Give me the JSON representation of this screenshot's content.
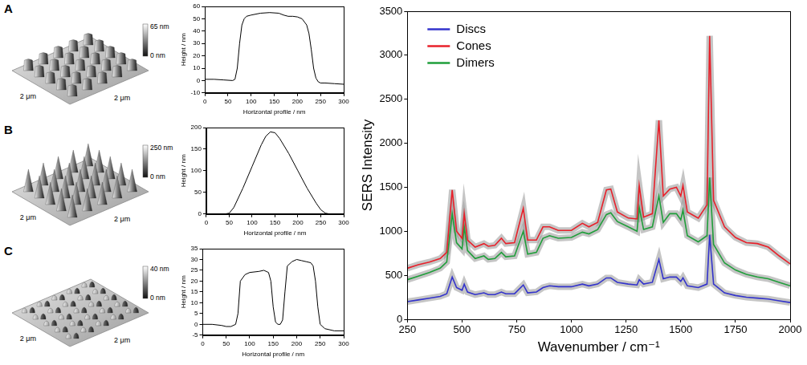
{
  "chart_data": [
    {
      "type": "line",
      "x_label": "Horizontal profile / nm",
      "y_label": "Height / nm",
      "x": [
        0,
        20,
        40,
        60,
        65,
        70,
        75,
        80,
        85,
        90,
        100,
        120,
        140,
        160,
        170,
        180,
        190,
        200,
        210,
        220,
        225,
        230,
        235,
        240,
        245,
        250,
        260,
        280,
        300
      ],
      "values": [
        1,
        1,
        0.5,
        0,
        1,
        10,
        30,
        45,
        50,
        52,
        53,
        54.5,
        55,
        54.5,
        53,
        52,
        52,
        51.5,
        50,
        45,
        38,
        25,
        10,
        2,
        -1,
        -2,
        -2,
        -2.5,
        -3
      ],
      "color": "#000000",
      "xlim": [
        0,
        300
      ],
      "xticks": [
        0,
        50,
        100,
        150,
        200,
        250,
        300
      ],
      "ylim": [
        -10,
        60
      ],
      "yticks": [
        -10,
        0,
        10,
        20,
        30,
        40,
        50,
        60
      ],
      "grid": false
    },
    {
      "type": "line",
      "x_label": "Horizontal profile / nm",
      "y_label": "Height / nm",
      "x": [
        0,
        20,
        40,
        50,
        60,
        80,
        100,
        120,
        130,
        140,
        150,
        160,
        180,
        200,
        220,
        240,
        250,
        260,
        270,
        280,
        300
      ],
      "values": [
        0,
        0,
        0,
        2,
        15,
        60,
        110,
        160,
        180,
        190,
        188,
        175,
        140,
        100,
        60,
        25,
        10,
        2,
        0,
        0,
        0
      ],
      "color": "#000000",
      "xlim": [
        0,
        300
      ],
      "xticks": [
        0,
        50,
        100,
        150,
        200,
        250,
        300
      ],
      "ylim": [
        0,
        200
      ],
      "yticks": [
        0,
        50,
        100,
        150,
        200
      ],
      "grid": false
    },
    {
      "type": "line",
      "x_label": "Horizontal profile / nm",
      "y_label": "Height / nm",
      "x": [
        0,
        20,
        40,
        50,
        60,
        70,
        75,
        80,
        90,
        100,
        120,
        130,
        140,
        145,
        150,
        155,
        160,
        165,
        170,
        175,
        180,
        190,
        200,
        210,
        220,
        230,
        235,
        240,
        245,
        250,
        260,
        280,
        300
      ],
      "values": [
        0,
        0,
        -0.5,
        -1,
        -1,
        0,
        5,
        20,
        23,
        24,
        24.5,
        25,
        24,
        20,
        8,
        1,
        0,
        0,
        2,
        15,
        27,
        29,
        30,
        29.5,
        29,
        28.5,
        27,
        20,
        8,
        0,
        -2,
        -3,
        -3
      ],
      "color": "#000000",
      "xlim": [
        0,
        300
      ],
      "xticks": [
        0,
        50,
        100,
        150,
        200,
        250,
        300
      ],
      "ylim": [
        -5,
        35
      ],
      "yticks": [
        -5,
        0,
        5,
        10,
        15,
        20,
        25,
        30,
        35
      ],
      "grid": false
    },
    {
      "type": "line",
      "x_label": "Wavenumber / cm⁻¹",
      "y_label": "SERS Intensity",
      "x": [
        250,
        300,
        350,
        400,
        430,
        455,
        475,
        500,
        510,
        525,
        560,
        600,
        620,
        650,
        680,
        700,
        740,
        780,
        800,
        840,
        870,
        900,
        940,
        1000,
        1050,
        1080,
        1120,
        1160,
        1180,
        1210,
        1260,
        1300,
        1310,
        1330,
        1370,
        1400,
        1420,
        1450,
        1480,
        1500,
        1510,
        1530,
        1580,
        1620,
        1632,
        1650,
        1700,
        1750,
        1800,
        1850,
        1900,
        1950,
        2000
      ],
      "series": [
        {
          "name": "Discs",
          "color": "#3333cc",
          "values": [
            200,
            220,
            240,
            260,
            290,
            480,
            360,
            330,
            400,
            310,
            280,
            300,
            280,
            280,
            310,
            290,
            290,
            390,
            300,
            310,
            360,
            380,
            370,
            370,
            400,
            380,
            400,
            470,
            470,
            420,
            400,
            390,
            450,
            400,
            420,
            680,
            460,
            480,
            480,
            430,
            470,
            380,
            360,
            400,
            960,
            400,
            300,
            270,
            250,
            240,
            230,
            210,
            190
          ]
        },
        {
          "name": "Cones",
          "color": "#e8202a",
          "values": [
            580,
            620,
            650,
            690,
            760,
            1470,
            1000,
            920,
            1200,
            900,
            820,
            860,
            830,
            840,
            920,
            860,
            870,
            1260,
            900,
            900,
            1050,
            1050,
            1010,
            1010,
            1090,
            1050,
            1100,
            1470,
            1480,
            1220,
            1150,
            1140,
            1520,
            1160,
            1200,
            2260,
            1400,
            1480,
            1500,
            1400,
            1520,
            1220,
            1150,
            1300,
            3220,
            1350,
            1050,
            930,
            870,
            860,
            820,
            720,
            630
          ]
        },
        {
          "name": "Dimers",
          "color": "#1f9e3a",
          "values": [
            450,
            490,
            530,
            580,
            650,
            1200,
            870,
            800,
            1050,
            780,
            690,
            720,
            680,
            690,
            760,
            710,
            720,
            1000,
            740,
            760,
            920,
            950,
            920,
            930,
            990,
            970,
            1020,
            1190,
            1210,
            1110,
            1050,
            1000,
            1270,
            1020,
            1050,
            1400,
            1100,
            1200,
            1200,
            1130,
            1240,
            950,
            880,
            950,
            1610,
            850,
            640,
            560,
            510,
            480,
            460,
            420,
            380
          ]
        }
      ],
      "xlim": [
        250,
        2000
      ],
      "xticks": [
        250,
        500,
        750,
        1000,
        1250,
        1500,
        1750,
        2000
      ],
      "ylim": [
        0,
        3500
      ],
      "yticks": [
        0,
        500,
        1000,
        1500,
        2000,
        2500,
        3000,
        3500
      ],
      "grid": false,
      "legend": "upper left"
    }
  ],
  "afm_images": [
    {
      "panel": "A",
      "x_extent": "2 μm",
      "y_extent": "2 μm",
      "z_max": "65 nm",
      "z_min": "0 nm"
    },
    {
      "panel": "B",
      "x_extent": "2 μm",
      "y_extent": "2 μm",
      "z_max": "250 nm",
      "z_min": "0 nm"
    },
    {
      "panel": "C",
      "x_extent": "2 μm",
      "y_extent": "2 μm",
      "z_max": "40 nm",
      "z_min": "0 nm"
    }
  ]
}
